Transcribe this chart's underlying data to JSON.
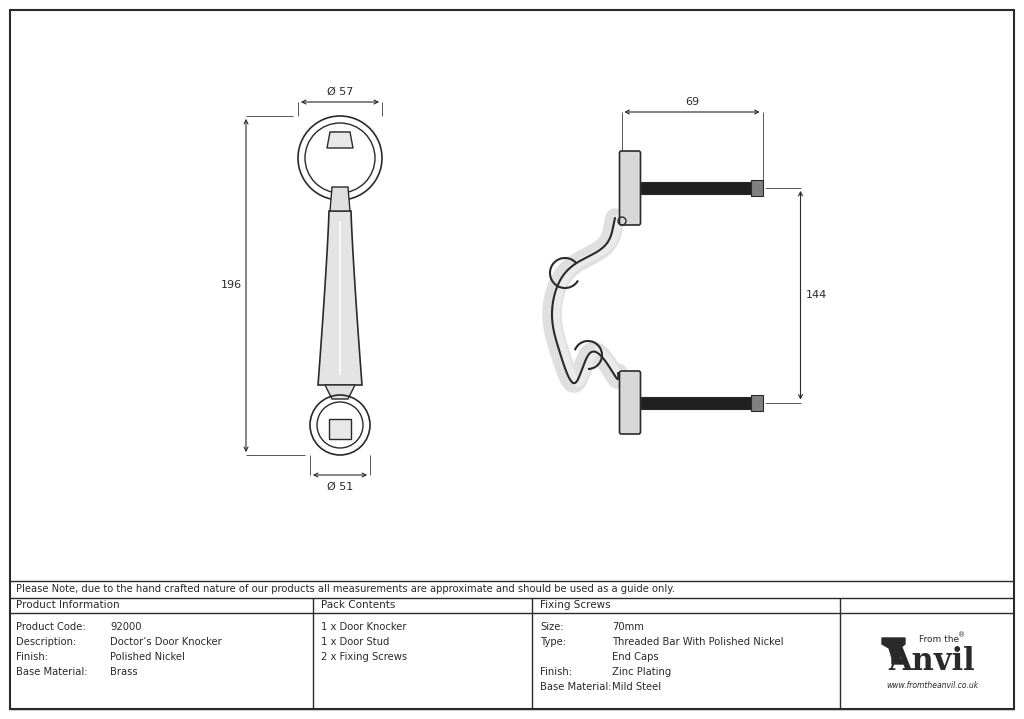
{
  "bg_color": "#ffffff",
  "line_color": "#2a2a2a",
  "note_text": "Please Note, due to the hand crafted nature of our products all measurements are approximate and should be used as a guide only.",
  "product_info_header": "Product Information",
  "product_info_rows": [
    [
      "Product Code:",
      "92000"
    ],
    [
      "Description:",
      "Doctor’s Door Knocker"
    ],
    [
      "Finish:",
      "Polished Nickel"
    ],
    [
      "Base Material:",
      "Brass"
    ]
  ],
  "pack_header": "Pack Contents",
  "pack_rows": [
    "1 x Door Knocker",
    "1 x Door Stud",
    "2 x Fixing Screws"
  ],
  "fix_header": "Fixing Screws",
  "fix_rows": [
    [
      "Size:",
      "70mm"
    ],
    [
      "Type:",
      "Threaded Bar With Polished Nickel"
    ],
    [
      "",
      "End Caps"
    ],
    [
      "Finish:",
      "Zinc Plating"
    ],
    [
      "Base Material:",
      "Mild Steel"
    ]
  ],
  "dim_top": "Ø 57",
  "dim_bottom": "Ø 51",
  "dim_height": "196",
  "dim_width69": "69",
  "dim_height144": "144",
  "anvil_text": "www.fromtheanvil.co.uk"
}
